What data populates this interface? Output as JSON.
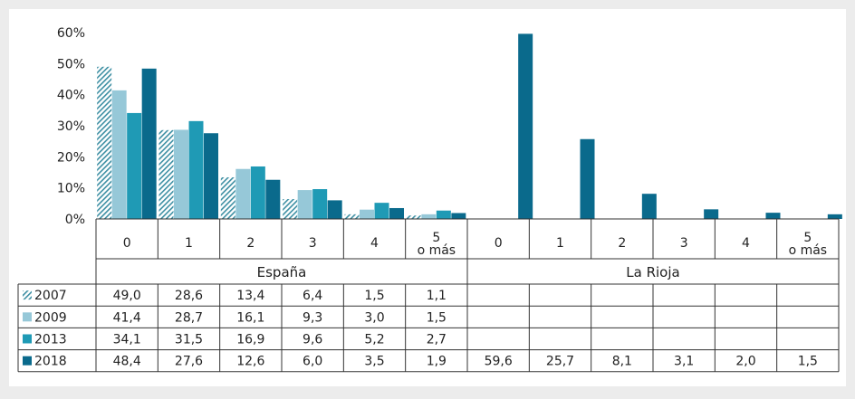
{
  "chart_data": {
    "type": "bar",
    "title": "",
    "xlabel": "",
    "ylabel": "",
    "ylim": [
      0,
      60
    ],
    "y_ticks": [
      "0%",
      "10%",
      "20%",
      "30%",
      "40%",
      "50%",
      "60%"
    ],
    "grid": false,
    "legend_position": "table-left",
    "groups": [
      {
        "name": "España",
        "categories": [
          "0",
          "1",
          "2",
          "3",
          "4",
          "5 o más"
        ]
      },
      {
        "name": "La Rioja",
        "categories": [
          "0",
          "1",
          "2",
          "3",
          "4",
          "5 o más"
        ]
      }
    ],
    "series": [
      {
        "name": "2007",
        "color": "#3d8fa3",
        "pattern": "hatch",
        "display": [
          "49,0",
          "28,6",
          "13,4",
          "6,4",
          "1,5",
          "1,1",
          "",
          "",
          "",
          "",
          "",
          ""
        ],
        "values": [
          49.0,
          28.6,
          13.4,
          6.4,
          1.5,
          1.1,
          null,
          null,
          null,
          null,
          null,
          null
        ]
      },
      {
        "name": "2009",
        "color": "#96c8d8",
        "display": [
          "41,4",
          "28,7",
          "16,1",
          "9,3",
          "3,0",
          "1,5",
          "",
          "",
          "",
          "",
          "",
          ""
        ],
        "values": [
          41.4,
          28.7,
          16.1,
          9.3,
          3.0,
          1.5,
          null,
          null,
          null,
          null,
          null,
          null
        ]
      },
      {
        "name": "2013",
        "color": "#1f9ab5",
        "display": [
          "34,1",
          "31,5",
          "16,9",
          "9,6",
          "5,2",
          "2,7",
          "",
          "",
          "",
          "",
          "",
          ""
        ],
        "values": [
          34.1,
          31.5,
          16.9,
          9.6,
          5.2,
          2.7,
          null,
          null,
          null,
          null,
          null,
          null
        ]
      },
      {
        "name": "2018",
        "color": "#0a6a8c",
        "display": [
          "48,4",
          "27,6",
          "12,6",
          "6,0",
          "3,5",
          "1,9",
          "59,6",
          "25,7",
          "8,1",
          "3,1",
          "2,0",
          "1,5"
        ],
        "values": [
          48.4,
          27.6,
          12.6,
          6.0,
          3.5,
          1.9,
          59.6,
          25.7,
          8.1,
          3.1,
          2.0,
          1.5
        ]
      }
    ]
  }
}
